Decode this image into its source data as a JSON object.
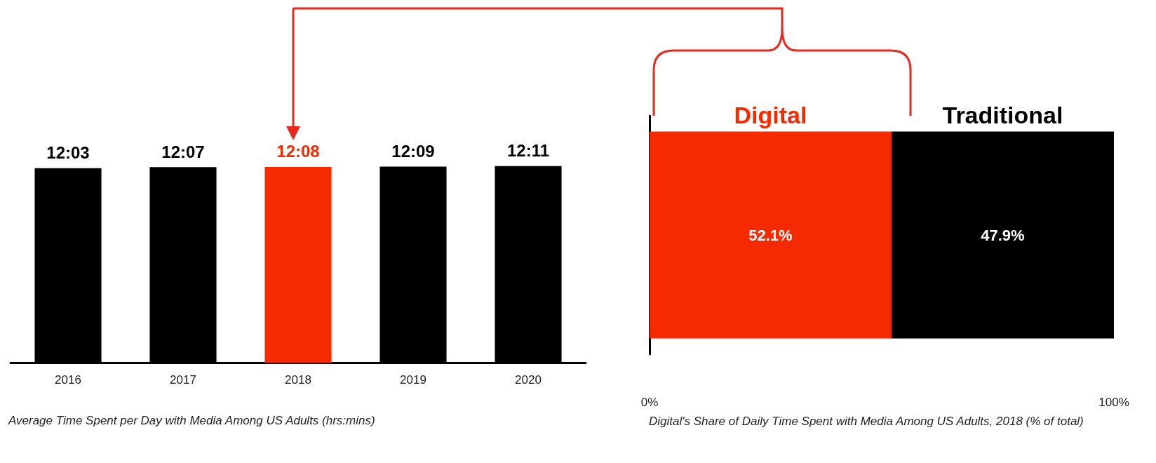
{
  "chart_data": [
    {
      "type": "bar",
      "title": "Average Time Spent per Day with Media Among US Adults (hrs:mins)",
      "categories": [
        "2016",
        "2017",
        "2018",
        "2019",
        "2020"
      ],
      "values": [
        12.05,
        12.1167,
        12.1333,
        12.15,
        12.1833
      ],
      "value_labels": [
        "12:03",
        "12:07",
        "12:08",
        "12:09",
        "12:11"
      ],
      "colors": [
        "#000000",
        "#000000",
        "#f52a00",
        "#000000",
        "#000000"
      ]
    },
    {
      "type": "bar",
      "title": "Digital's Share of Daily Time Spent with Media Among US Adults, 2018 (% of total)",
      "orientation": "horizontal",
      "stacked": true,
      "categories": [
        null
      ],
      "series": [
        {
          "name": "Digital",
          "color": "#f52a00",
          "values": [
            52.1
          ],
          "value_labels": [
            "52.1%"
          ]
        },
        {
          "name": "Traditional",
          "color": "#000000",
          "values": [
            47.9
          ],
          "value_labels": [
            "47.9%"
          ]
        }
      ],
      "xlim": [
        0,
        100
      ],
      "xticks": [
        {
          "value": 0,
          "label": "0%"
        },
        {
          "value": 100,
          "label": "100%"
        }
      ],
      "tick_labels": "x"
    }
  ]
}
